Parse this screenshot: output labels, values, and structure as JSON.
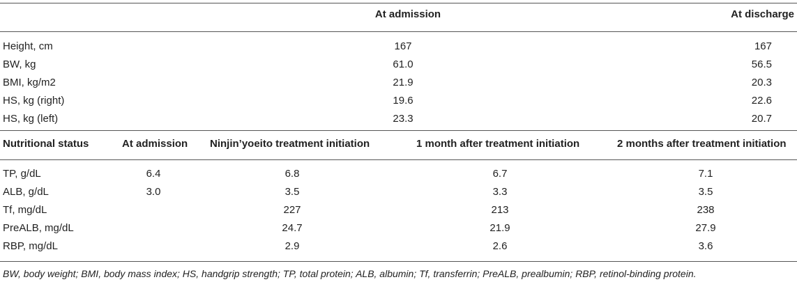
{
  "table1": {
    "headers": {
      "blank": "",
      "admission": "At admission",
      "discharge": "At discharge"
    },
    "rows": [
      {
        "label": "Height, cm",
        "admission": "167",
        "discharge": "167"
      },
      {
        "label": "BW, kg",
        "admission": "61.0",
        "discharge": "56.5"
      },
      {
        "label": "BMI, kg/m2",
        "admission": "21.9",
        "discharge": "20.3"
      },
      {
        "label": "HS, kg (right)",
        "admission": "19.6",
        "discharge": "22.6"
      },
      {
        "label": "HS, kg (left)",
        "admission": "23.3",
        "discharge": "20.7"
      }
    ]
  },
  "table2": {
    "headers": {
      "status": "Nutritional status",
      "admission": "At admission",
      "ninjin": "Ninjin’yoeito treatment initiation",
      "one_month": "1 month after treatment initiation",
      "two_months": "2 months after treatment initiation"
    },
    "rows": [
      {
        "label": "TP, g/dL",
        "admission": "6.4",
        "ninjin": "6.8",
        "one_month": "6.7",
        "two_months": "7.1"
      },
      {
        "label": "ALB, g/dL",
        "admission": "3.0",
        "ninjin": "3.5",
        "one_month": "3.3",
        "two_months": "3.5"
      },
      {
        "label": "Tf, mg/dL",
        "admission": "",
        "ninjin": "227",
        "one_month": "213",
        "two_months": "238"
      },
      {
        "label": "PreALB, mg/dL",
        "admission": "",
        "ninjin": "24.7",
        "one_month": "21.9",
        "two_months": "27.9"
      },
      {
        "label": "RBP, mg/dL",
        "admission": "",
        "ninjin": "2.9",
        "one_month": "2.6",
        "two_months": "3.6"
      }
    ]
  },
  "footnote": "BW, body weight; BMI, body mass index; HS, handgrip strength; TP, total protein; ALB, albumin; Tf, transferrin; PreALB, prealbumin; RBP, retinol-binding protein."
}
